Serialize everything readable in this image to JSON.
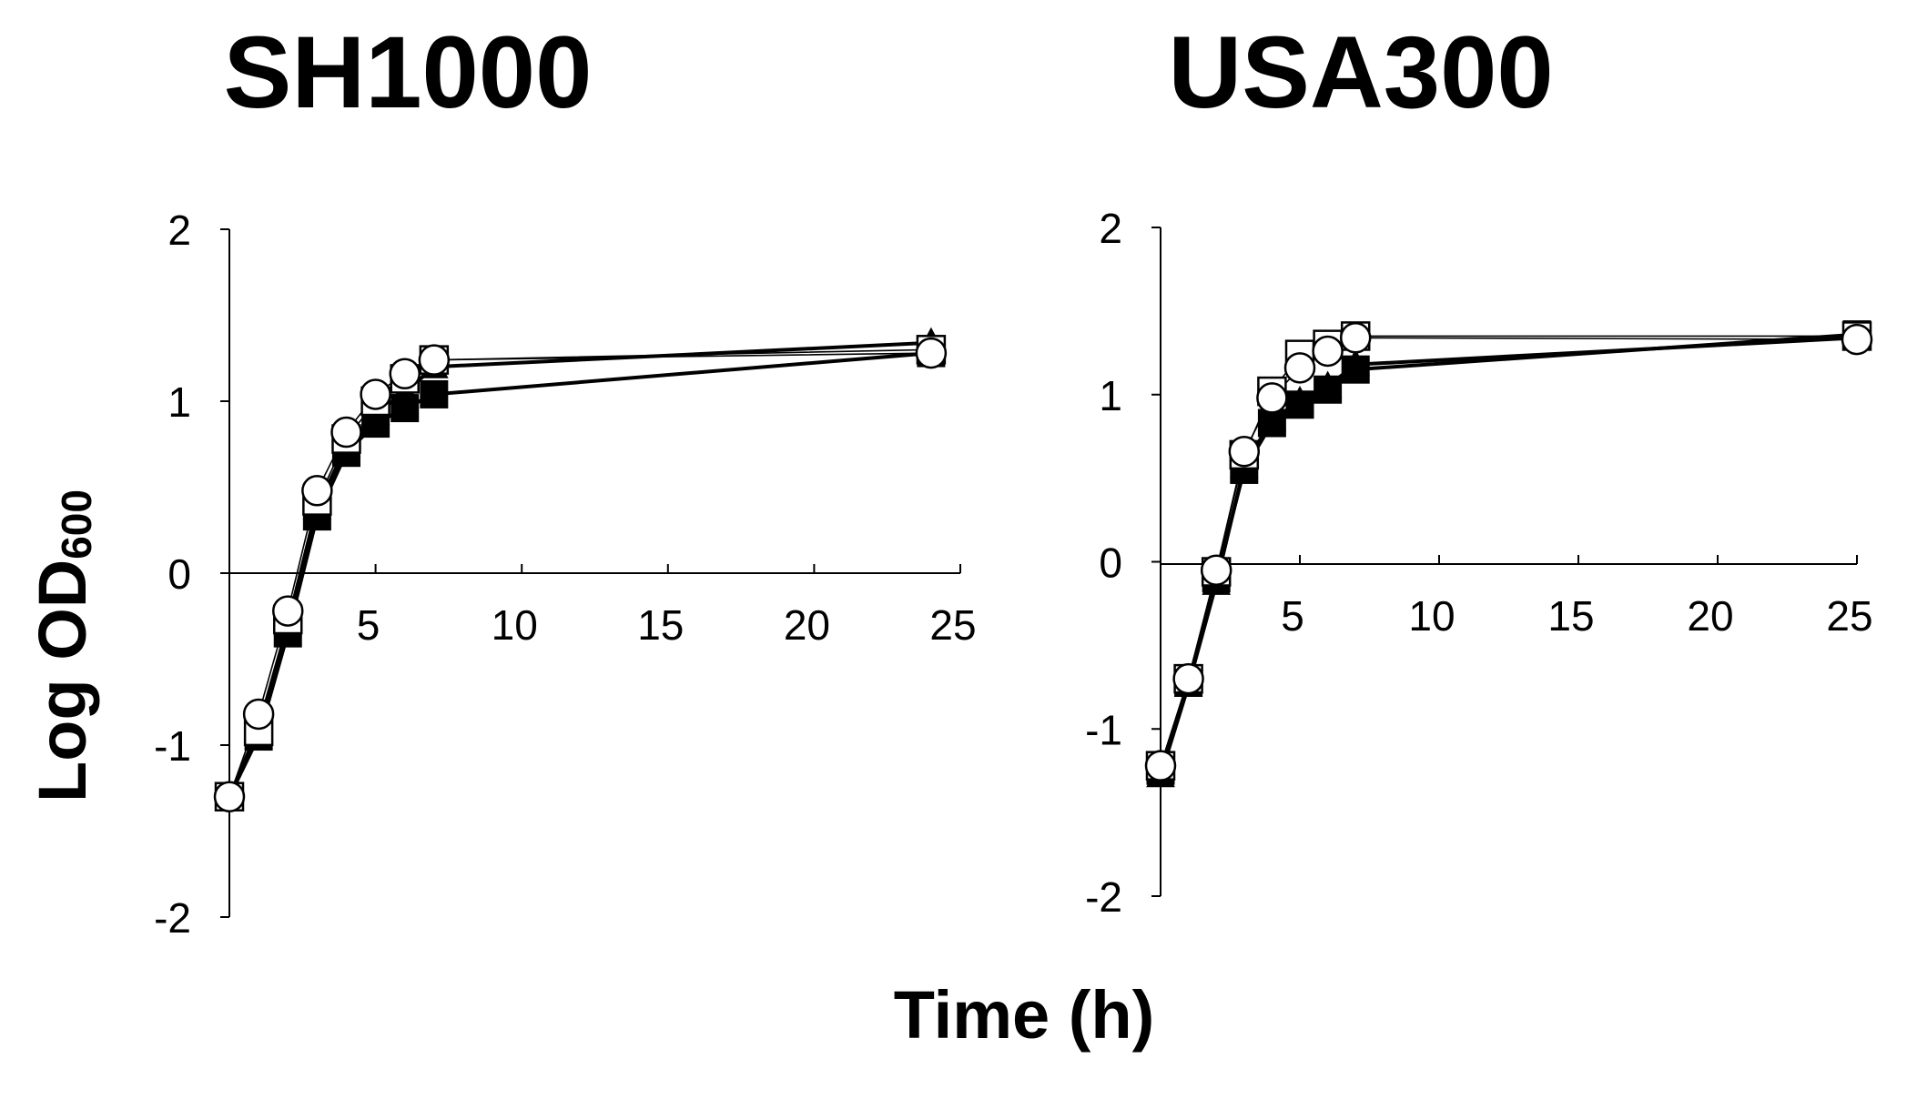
{
  "figure": {
    "ylabel": "Log OD",
    "ylabel_sub": "600",
    "xlabel": "Time (h)"
  },
  "chart_data": [
    {
      "type": "line",
      "title": "SH1000",
      "xlabel": "Time (h)",
      "ylabel": "Log OD600",
      "xlim": [
        0,
        25
      ],
      "ylim": [
        -2,
        2
      ],
      "xticks": [
        "5",
        "10",
        "15",
        "20",
        "25"
      ],
      "yticks": [
        "2",
        "1",
        "0",
        "-1",
        "-2"
      ],
      "grid": false,
      "series": [
        {
          "marker": "filled-square",
          "line": "thick",
          "x": [
            0,
            1,
            2,
            3,
            4,
            5,
            6,
            7,
            24
          ],
          "y": [
            -1.3,
            -0.95,
            -0.35,
            0.33,
            0.7,
            0.87,
            0.96,
            1.04,
            1.28
          ]
        },
        {
          "marker": "filled-triangle",
          "line": "thick",
          "x": [
            0,
            1,
            2,
            3,
            4,
            5,
            6,
            7,
            24
          ],
          "y": [
            -1.3,
            -0.9,
            -0.3,
            0.38,
            0.74,
            0.93,
            1.05,
            1.2,
            1.34
          ]
        },
        {
          "marker": "open-square",
          "line": "thin",
          "x": [
            0,
            1,
            2,
            3,
            4,
            5,
            6,
            7,
            24
          ],
          "y": [
            -1.3,
            -0.92,
            -0.27,
            0.42,
            0.78,
            1.0,
            1.13,
            1.24,
            1.3
          ]
        },
        {
          "marker": "open-circle",
          "line": "thin",
          "x": [
            0,
            1,
            2,
            3,
            4,
            5,
            6,
            7,
            24
          ],
          "y": [
            -1.3,
            -0.82,
            -0.22,
            0.48,
            0.82,
            1.04,
            1.16,
            1.24,
            1.28
          ]
        }
      ]
    },
    {
      "type": "line",
      "title": "USA300",
      "xlabel": "Time (h)",
      "ylabel": "Log OD600",
      "xlim": [
        0,
        25
      ],
      "ylim": [
        -2,
        2
      ],
      "xticks": [
        "5",
        "10",
        "15",
        "20",
        "25"
      ],
      "yticks": [
        "2",
        "1",
        "0",
        "-1",
        "-2"
      ],
      "grid": false,
      "series": [
        {
          "marker": "filled-triangle",
          "line": "thick",
          "x": [
            0,
            1,
            2,
            3,
            4,
            5,
            6,
            7,
            25
          ],
          "y": [
            -1.28,
            -0.74,
            -0.13,
            0.57,
            0.85,
            0.96,
            1.05,
            1.18,
            1.34
          ]
        },
        {
          "marker": "filled-square",
          "line": "thick",
          "x": [
            0,
            1,
            2,
            3,
            4,
            5,
            6,
            7,
            25
          ],
          "y": [
            -1.25,
            -0.72,
            -0.1,
            0.55,
            0.83,
            0.94,
            1.03,
            1.15,
            1.36
          ]
        },
        {
          "marker": "open-square",
          "line": "thin",
          "x": [
            0,
            1,
            2,
            3,
            4,
            5,
            6,
            7,
            25
          ],
          "y": [
            -1.22,
            -0.7,
            -0.06,
            0.64,
            1.02,
            1.24,
            1.3,
            1.35,
            1.35
          ]
        },
        {
          "marker": "open-circle",
          "line": "thin",
          "x": [
            0,
            1,
            2,
            3,
            4,
            5,
            6,
            7,
            25
          ],
          "y": [
            -1.22,
            -0.7,
            -0.05,
            0.66,
            0.98,
            1.16,
            1.26,
            1.34,
            1.33
          ]
        }
      ]
    }
  ]
}
